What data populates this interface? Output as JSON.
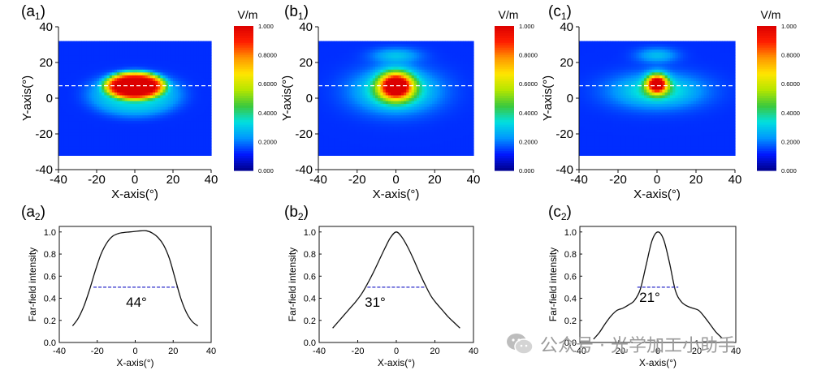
{
  "colors": {
    "colormap": [
      "#00008c",
      "#0018ff",
      "#0096ff",
      "#00e0e0",
      "#3cc83c",
      "#b4e600",
      "#ffe600",
      "#ff9600",
      "#ff1e00",
      "#dc0000"
    ],
    "dashed_heatmap": "#ffffff",
    "dashed_profile": "#2828c8",
    "line": "#111111"
  },
  "panels": {
    "a1": {
      "label": "(a",
      "sub": "1",
      "suffix": ")"
    },
    "b1": {
      "label": "(b",
      "sub": "1",
      "suffix": ")"
    },
    "c1": {
      "label": "(c",
      "sub": "1",
      "suffix": ")"
    },
    "a2": {
      "label": "(a",
      "sub": "2",
      "suffix": ")"
    },
    "b2": {
      "label": "(b",
      "sub": "2",
      "suffix": ")"
    },
    "c2": {
      "label": "(c",
      "sub": "2",
      "suffix": ")"
    }
  },
  "colorbar": {
    "unit": "V/m",
    "ticks": [
      "1.000",
      "0.8000",
      "0.6000",
      "0.4000",
      "0.2000",
      "0.000"
    ]
  },
  "watermark": {
    "text": "公众号 · 光学加工小助手"
  },
  "chart_data": [
    {
      "id": "a1",
      "type": "heatmap",
      "xlabel": "X-axis(°)",
      "ylabel": "Y-axis(°)",
      "xlim": [
        -40,
        40
      ],
      "ylim": [
        -40,
        40
      ],
      "xticks": [
        -40,
        -20,
        0,
        20,
        40
      ],
      "yticks": [
        40,
        20,
        0,
        -20,
        -40
      ],
      "data_extent_y": [
        -32,
        32
      ],
      "guide_y": 7,
      "blobs": [
        {
          "cx": 0,
          "cy": 7,
          "sx": 16,
          "sy": 8,
          "amp": 0.62,
          "power": 6
        },
        {
          "cx": 0,
          "cy": 7,
          "sx": 10,
          "sy": 4,
          "amp": 0.38,
          "power": 2
        },
        {
          "cx": 0,
          "cy": 2,
          "sx": 24,
          "sy": 12,
          "amp": 0.2,
          "power": 4
        }
      ],
      "colorbar_range": [
        0,
        1
      ]
    },
    {
      "id": "b1",
      "type": "heatmap",
      "xlabel": "X-axis(°)",
      "ylabel": "Y-axis(°)",
      "xlim": [
        -40,
        40
      ],
      "ylim": [
        -40,
        40
      ],
      "xticks": [
        -40,
        -20,
        0,
        20,
        40
      ],
      "yticks": [
        40,
        20,
        0,
        -20,
        -40
      ],
      "data_extent_y": [
        -32,
        32
      ],
      "guide_y": 7,
      "blobs": [
        {
          "cx": 0,
          "cy": 7,
          "sx": 8,
          "sy": 7,
          "amp": 0.95,
          "power": 2
        },
        {
          "cx": 0,
          "cy": 4,
          "sx": 20,
          "sy": 11,
          "amp": 0.3,
          "power": 2
        },
        {
          "cx": 0,
          "cy": 24,
          "sx": 12,
          "sy": 4,
          "amp": 0.15,
          "power": 2
        }
      ],
      "colorbar_range": [
        0,
        1
      ]
    },
    {
      "id": "c1",
      "type": "heatmap",
      "xlabel": "X-axis(°)",
      "ylabel": "Y-axis(°)",
      "xlim": [
        -40,
        40
      ],
      "ylim": [
        -40,
        40
      ],
      "xticks": [
        -40,
        -20,
        0,
        20,
        40
      ],
      "yticks": [
        40,
        20,
        0,
        -20,
        -40
      ],
      "data_extent_y": [
        -32,
        32
      ],
      "guide_y": 7,
      "blobs": [
        {
          "cx": 0,
          "cy": 8,
          "sx": 5,
          "sy": 5,
          "amp": 0.95,
          "power": 2
        },
        {
          "cx": 0,
          "cy": 4,
          "sx": 22,
          "sy": 9,
          "amp": 0.25,
          "power": 2
        },
        {
          "cx": 0,
          "cy": 24,
          "sx": 10,
          "sy": 4,
          "amp": 0.15,
          "power": 2
        }
      ],
      "colorbar_range": [
        0,
        1
      ]
    },
    {
      "id": "a2",
      "type": "line",
      "xlabel": "X-axis(°)",
      "ylabel": "Far-field intensity",
      "xlim": [
        -40,
        40
      ],
      "ylim": [
        0,
        1.05
      ],
      "xticks": [
        -40,
        -20,
        0,
        20,
        40
      ],
      "yticks": [
        0.0,
        0.2,
        0.4,
        0.6,
        0.8,
        1.0
      ],
      "x": [
        -33,
        -30,
        -27,
        -24,
        -21,
        -18,
        -15,
        -12,
        -9,
        -6,
        -3,
        0,
        3,
        6,
        9,
        12,
        15,
        18,
        21,
        24,
        27,
        30,
        33
      ],
      "y": [
        0.15,
        0.22,
        0.33,
        0.48,
        0.65,
        0.8,
        0.9,
        0.96,
        0.985,
        0.995,
        1.0,
        1.005,
        1.01,
        1.01,
        0.99,
        0.95,
        0.88,
        0.76,
        0.58,
        0.4,
        0.27,
        0.19,
        0.15
      ],
      "fwhm_line": {
        "x": [
          -22,
          22
        ],
        "y": 0.5
      },
      "annotation": "44°"
    },
    {
      "id": "b2",
      "type": "line",
      "xlabel": "X-axis(°)",
      "ylabel": "Far-field intensity",
      "xlim": [
        -40,
        40
      ],
      "ylim": [
        0,
        1.05
      ],
      "xticks": [
        -40,
        -20,
        0,
        20,
        40
      ],
      "yticks": [
        0.0,
        0.2,
        0.4,
        0.6,
        0.8,
        1.0
      ],
      "x": [
        -33,
        -30,
        -27,
        -24,
        -21,
        -18,
        -15,
        -12,
        -9,
        -6,
        -3,
        0,
        3,
        6,
        9,
        12,
        15,
        18,
        21,
        24,
        27,
        30,
        33
      ],
      "y": [
        0.13,
        0.19,
        0.25,
        0.31,
        0.37,
        0.44,
        0.53,
        0.63,
        0.74,
        0.85,
        0.95,
        1.0,
        0.95,
        0.86,
        0.75,
        0.63,
        0.52,
        0.42,
        0.35,
        0.29,
        0.23,
        0.18,
        0.13
      ],
      "fwhm_line": {
        "x": [
          -15,
          15
        ],
        "y": 0.5
      },
      "annotation": "31°"
    },
    {
      "id": "c2",
      "type": "line",
      "xlabel": "X-axis(°)",
      "ylabel": "Far-field intensity",
      "xlim": [
        -40,
        40
      ],
      "ylim": [
        0,
        1.05
      ],
      "xticks": [
        -40,
        -20,
        0,
        20,
        40
      ],
      "yticks": [
        0.0,
        0.2,
        0.4,
        0.6,
        0.8,
        1.0
      ],
      "x": [
        -33,
        -30,
        -27,
        -24,
        -21,
        -18,
        -15,
        -12,
        -9,
        -6,
        -3,
        0,
        3,
        6,
        9,
        12,
        15,
        18,
        21,
        24,
        27,
        30,
        33
      ],
      "y": [
        0.03,
        0.09,
        0.17,
        0.24,
        0.29,
        0.31,
        0.34,
        0.38,
        0.48,
        0.7,
        0.92,
        1.0,
        0.93,
        0.72,
        0.47,
        0.37,
        0.33,
        0.31,
        0.29,
        0.23,
        0.16,
        0.09,
        0.04
      ],
      "fwhm_line": {
        "x": [
          -10.5,
          10.5
        ],
        "y": 0.5
      },
      "annotation": "21°"
    }
  ]
}
